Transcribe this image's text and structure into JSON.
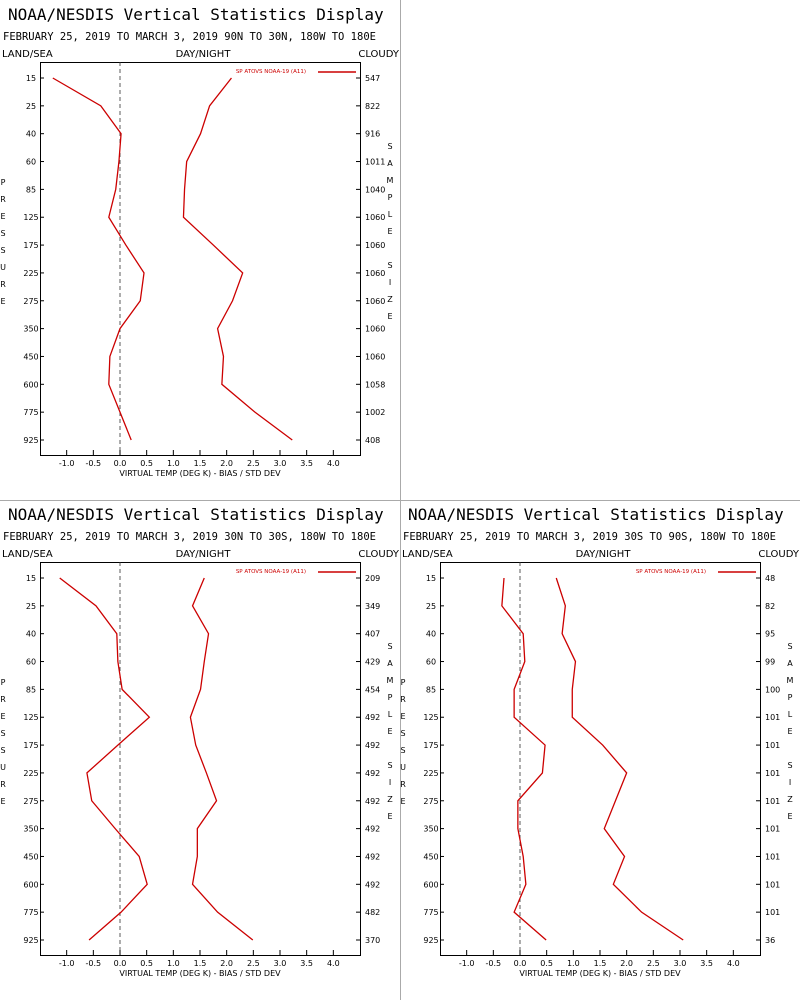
{
  "chart_data": [
    {
      "type": "line",
      "title": "NOAA/NESDIS Vertical Statistics Display",
      "subtitle": "FEBRUARY 25, 2019 TO MARCH 3, 2019 90N TO 30N, 180W TO 180E",
      "left_header": "LAND/SEA",
      "center_header": "DAY/NIGHT",
      "right_header": "CLOUDY",
      "ylabel": "PRESSURE",
      "y2label": "SAMPLE SIZE",
      "xlabel": "VIRTUAL TEMP (DEG K) - BIAS / STD DEV",
      "categories": [
        15,
        25,
        40,
        60,
        85,
        125,
        175,
        225,
        275,
        350,
        450,
        600,
        775,
        925
      ],
      "sample_size": [
        547,
        822,
        916,
        1011,
        1040,
        1060,
        1060,
        1060,
        1060,
        1060,
        1060,
        1058,
        1002,
        408
      ],
      "series": [
        {
          "name": "SP ATOVS NOAA-19 (A11)",
          "color": "#cc0000",
          "values": [
            -1.26,
            -0.36,
            0.02,
            -0.02,
            -0.08,
            -0.21,
            0.11,
            0.45,
            0.38,
            0.0,
            -0.19,
            -0.21,
            0.0,
            0.21
          ],
          "std_dev": [
            2.09,
            1.68,
            1.51,
            1.25,
            1.21,
            1.19,
            1.75,
            2.3,
            2.11,
            1.83,
            1.94,
            1.91,
            2.53,
            3.23
          ]
        }
      ],
      "xlim": [
        -1.5,
        4.5
      ],
      "xticks": [
        {
          "value": -1,
          "label": "-1.0"
        },
        -0.5,
        {
          "value": 0,
          "label": "0.0"
        },
        0.5,
        {
          "value": 1,
          "label": "1.0"
        },
        1.5,
        {
          "value": 2,
          "label": "2.0"
        },
        2.5,
        {
          "value": 3,
          "label": "3.0"
        },
        3.5,
        {
          "value": 4,
          "label": "4.0"
        }
      ]
    },
    {
      "type": "line",
      "title": "NOAA/NESDIS Vertical Statistics Display",
      "subtitle": "FEBRUARY 25, 2019 TO MARCH 3, 2019 30N TO 30S, 180W TO 180E",
      "left_header": "LAND/SEA",
      "center_header": "DAY/NIGHT",
      "right_header": "CLOUDY",
      "ylabel": "PRESSURE",
      "y2label": "SAMPLE SIZE",
      "xlabel": "VIRTUAL TEMP (DEG K) - BIAS / STD DEV",
      "categories": [
        15,
        25,
        40,
        60,
        85,
        125,
        175,
        225,
        275,
        350,
        450,
        600,
        775,
        925
      ],
      "sample_size": [
        209,
        349,
        407,
        429,
        454,
        492,
        492,
        492,
        492,
        492,
        492,
        492,
        482,
        370
      ],
      "series": [
        {
          "name": "SP ATOVS NOAA-19 (A11)",
          "color": "#cc0000",
          "values": [
            -1.13,
            -0.45,
            -0.06,
            -0.04,
            0.04,
            0.55,
            -0.04,
            -0.62,
            -0.53,
            -0.09,
            0.36,
            0.51,
            0.02,
            -0.58
          ],
          "std_dev": [
            1.58,
            1.36,
            1.66,
            1.58,
            1.51,
            1.32,
            1.42,
            1.62,
            1.81,
            1.45,
            1.45,
            1.36,
            1.83,
            2.49
          ]
        }
      ],
      "xlim": [
        -1.5,
        4.5
      ],
      "xticks": [
        {
          "value": -1,
          "label": "-1.0"
        },
        -0.5,
        {
          "value": 0,
          "label": "0.0"
        },
        0.5,
        {
          "value": 1,
          "label": "1.0"
        },
        1.5,
        {
          "value": 2,
          "label": "2.0"
        },
        2.5,
        {
          "value": 3,
          "label": "3.0"
        },
        3.5,
        {
          "value": 4,
          "label": "4.0"
        }
      ]
    },
    {
      "type": "line",
      "title": "NOAA/NESDIS Vertical Statistics Display",
      "subtitle": "FEBRUARY 25, 2019 TO MARCH 3, 2019 30S TO 90S, 180W TO 180E",
      "left_header": "LAND/SEA",
      "center_header": "DAY/NIGHT",
      "right_header": "CLOUDY",
      "ylabel": "PRESSURE",
      "y2label": "SAMPLE SIZE",
      "xlabel": "VIRTUAL TEMP (DEG K) - BIAS / STD DEV",
      "categories": [
        15,
        25,
        40,
        60,
        85,
        125,
        175,
        225,
        275,
        350,
        450,
        600,
        775,
        925
      ],
      "sample_size": [
        48,
        82,
        95,
        99,
        100,
        101,
        101,
        101,
        101,
        101,
        101,
        101,
        101,
        36
      ],
      "series": [
        {
          "name": "SP ATOVS NOAA-19 (A11)",
          "color": "#cc0000",
          "values": [
            -0.3,
            -0.34,
            0.06,
            0.09,
            -0.11,
            -0.11,
            0.47,
            0.42,
            -0.04,
            -0.04,
            0.06,
            0.11,
            -0.11,
            0.49
          ],
          "std_dev": [
            0.68,
            0.85,
            0.79,
            1.04,
            0.98,
            0.98,
            1.55,
            2.0,
            1.79,
            1.58,
            1.96,
            1.75,
            2.28,
            3.06
          ]
        }
      ],
      "xlim": [
        -1.5,
        4.5
      ],
      "xticks": [
        {
          "value": -1,
          "label": "-1.0"
        },
        -0.5,
        {
          "value": 0,
          "label": "0.0"
        },
        0.5,
        {
          "value": 1,
          "label": "1.0"
        },
        1.5,
        {
          "value": 2,
          "label": "2.0"
        },
        2.5,
        {
          "value": 3,
          "label": "3.0"
        },
        3.5,
        {
          "value": 4,
          "label": "4.0"
        }
      ]
    }
  ]
}
